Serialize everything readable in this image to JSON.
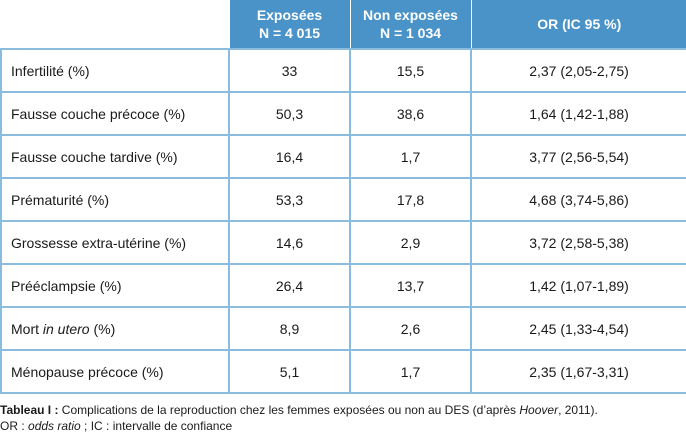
{
  "table": {
    "headers": [
      {
        "line1": "Exposées",
        "line2": "N = 4 015"
      },
      {
        "line1": "Non exposées",
        "line2": "N = 1 034"
      },
      {
        "line1": "OR (IC 95 %)",
        "line2": ""
      }
    ],
    "rows": [
      {
        "label": "Infertilité (%)",
        "exposed": "33",
        "not_exposed": "15,5",
        "or": "2,37 (2,05-2,75)"
      },
      {
        "label": "Fausse couche précoce (%)",
        "exposed": "50,3",
        "not_exposed": "38,6",
        "or": "1,64 (1,42-1,88)"
      },
      {
        "label": "Fausse couche tardive (%)",
        "exposed": "16,4",
        "not_exposed": "1,7",
        "or": "3,77 (2,56-5,54)"
      },
      {
        "label": "Prématurité (%)",
        "exposed": "53,3",
        "not_exposed": "17,8",
        "or": "4,68 (3,74-5,86)"
      },
      {
        "label": "Grossesse extra-utérine (%)",
        "exposed": "14,6",
        "not_exposed": "2,9",
        "or": "3,72 (2,58-5,38)"
      },
      {
        "label": "Prééclampsie (%)",
        "exposed": "26,4",
        "not_exposed": "13,7",
        "or": "1,42 (1,07-1,89)"
      },
      {
        "label_pre": "Mort ",
        "label_italic": "in utero",
        "label_post": " (%)",
        "exposed": "8,9",
        "not_exposed": "2,6",
        "or": "2,45 (1,33-4,54)"
      },
      {
        "label": "Ménopause précoce (%)",
        "exposed": "5,1",
        "not_exposed": "1,7",
        "or": "2,35 (1,67-3,31)"
      }
    ]
  },
  "caption": {
    "bold": "Tableau I :",
    "text_before_italic": " Complications de la reproduction chez les femmes exposées ou non au DES (d’après ",
    "italic": "Hoover",
    "text_after_italic": ", 2011).",
    "line2_prefix": "OR : ",
    "line2_italic": "odds ratio",
    "line2_suffix": " ; IC : intervalle de confiance"
  },
  "colors": {
    "header_bg": "#4a93c9",
    "grid": "#8cbbe0"
  }
}
